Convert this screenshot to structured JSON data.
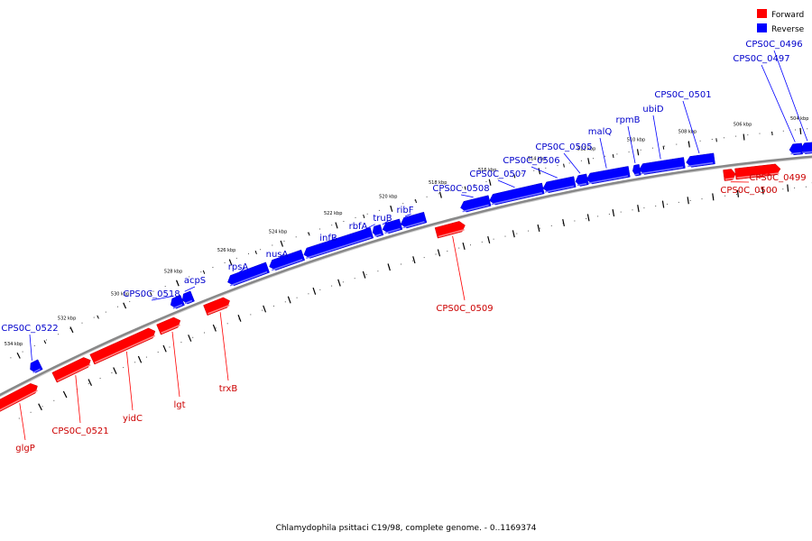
{
  "legend": {
    "forward_label": "Forward",
    "reverse_label": "Reverse",
    "forward_color": "#ff0000",
    "reverse_color": "#0000ff"
  },
  "caption": "Chlamydophila psittaci C19/98, complete genome. - 0..1169374",
  "scale": {
    "unit": "kbp",
    "ticks": [
      "504 kbp",
      "506 kbp",
      "508 kbp",
      "510 kbp",
      "512 kbp",
      "514 kbp",
      "516 kbp",
      "518 kbp",
      "520 kbp",
      "522 kbp",
      "524 kbp",
      "526 kbp",
      "528 kbp",
      "530 kbp",
      "532 kbp",
      "534 kbp"
    ]
  },
  "genes": [
    {
      "name": "CPS0C_0496",
      "strand": "reverse"
    },
    {
      "name": "CPS0C_0497",
      "strand": "reverse"
    },
    {
      "name": "CPS0C_0501",
      "strand": "reverse"
    },
    {
      "name": "ubiD",
      "strand": "reverse"
    },
    {
      "name": "rpmB",
      "strand": "reverse"
    },
    {
      "name": "malQ",
      "strand": "reverse"
    },
    {
      "name": "CPS0C_0505",
      "strand": "reverse"
    },
    {
      "name": "CPS0C_0506",
      "strand": "reverse"
    },
    {
      "name": "CPS0C_0507",
      "strand": "reverse"
    },
    {
      "name": "CPS0C_0508",
      "strand": "reverse"
    },
    {
      "name": "ribF",
      "strand": "reverse"
    },
    {
      "name": "truB",
      "strand": "reverse"
    },
    {
      "name": "rbfA",
      "strand": "reverse"
    },
    {
      "name": "infB",
      "strand": "reverse"
    },
    {
      "name": "nusA",
      "strand": "reverse"
    },
    {
      "name": "rpsA",
      "strand": "reverse"
    },
    {
      "name": "acpS",
      "strand": "reverse"
    },
    {
      "name": "CPS0C_0518",
      "strand": "reverse"
    },
    {
      "name": "CPS0C_0522",
      "strand": "reverse"
    },
    {
      "name": "CPS0C_0499",
      "strand": "forward"
    },
    {
      "name": "CPS0C_0500",
      "strand": "forward"
    },
    {
      "name": "CPS0C_0509",
      "strand": "forward"
    },
    {
      "name": "trxB",
      "strand": "forward"
    },
    {
      "name": "lgt",
      "strand": "forward"
    },
    {
      "name": "yidC",
      "strand": "forward"
    },
    {
      "name": "CPS0C_0521",
      "strand": "forward"
    },
    {
      "name": "glgP",
      "strand": "forward"
    }
  ]
}
